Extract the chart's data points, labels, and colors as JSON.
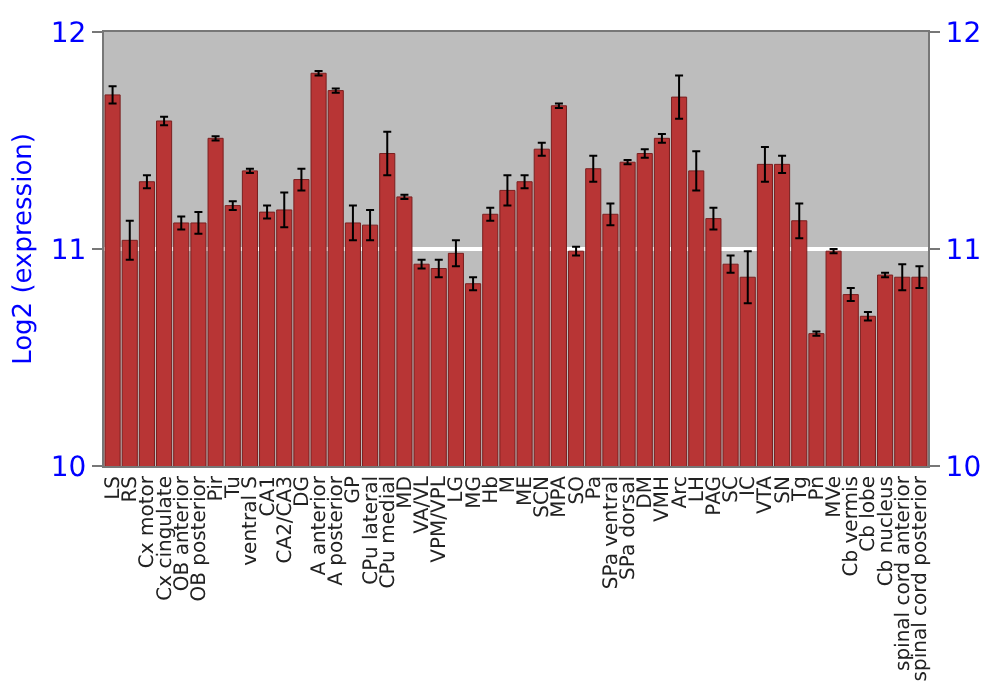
{
  "chart_data": {
    "type": "bar",
    "ylabel": "Log2 (expression)",
    "categories": [
      "LS",
      "RS",
      "Cx motor",
      "Cx cingulate",
      "OB anterior",
      "OB posterior",
      "Pir",
      "Tu",
      "ventral S",
      "CA1",
      "CA2/CA3",
      "DG",
      "A anterior",
      "A posterior",
      "GP",
      "CPu lateral",
      "CPu medial",
      "MD",
      "VA/VL",
      "VPM/VPL",
      "LG",
      "MG",
      "Hb",
      "M",
      "ME",
      "SCN",
      "MPA",
      "SO",
      "Pa",
      "SPa ventral",
      "SPa dorsal",
      "DM",
      "VMH",
      "Arc",
      "LH",
      "PAG",
      "SC",
      "IC",
      "VTA",
      "SN",
      "Tg",
      "Pn",
      "MVe",
      "Cb vermis",
      "Cb lobe",
      "Cb nucleus",
      "spinal cord anterior",
      "spinal cord posterior"
    ],
    "values": [
      11.71,
      11.04,
      11.31,
      11.59,
      11.12,
      11.12,
      11.51,
      11.2,
      11.36,
      11.17,
      11.18,
      11.32,
      11.81,
      11.73,
      11.12,
      11.11,
      11.44,
      11.24,
      10.93,
      10.91,
      10.98,
      10.84,
      11.16,
      11.27,
      11.31,
      11.46,
      11.66,
      10.99,
      11.37,
      11.16,
      11.4,
      11.44,
      11.51,
      11.7,
      11.36,
      11.14,
      10.93,
      10.87,
      11.39,
      11.39,
      11.13,
      10.61,
      10.99,
      10.79,
      10.69,
      10.88,
      10.87,
      10.87
    ],
    "errors": [
      0.04,
      0.09,
      0.03,
      0.02,
      0.03,
      0.05,
      0.01,
      0.02,
      0.01,
      0.03,
      0.08,
      0.05,
      0.01,
      0.01,
      0.08,
      0.07,
      0.1,
      0.01,
      0.02,
      0.04,
      0.06,
      0.03,
      0.03,
      0.07,
      0.03,
      0.03,
      0.01,
      0.02,
      0.06,
      0.05,
      0.01,
      0.02,
      0.02,
      0.1,
      0.09,
      0.05,
      0.04,
      0.12,
      0.08,
      0.04,
      0.08,
      0.01,
      0.01,
      0.03,
      0.02,
      0.01,
      0.06,
      0.05
    ],
    "color": "#b83535",
    "ylim": [
      10,
      12
    ],
    "yticks": [
      10,
      11,
      12
    ],
    "y2lim": [
      10,
      12
    ],
    "y2ticks": [
      10,
      11,
      12
    ],
    "grid": "y",
    "legend": false
  }
}
